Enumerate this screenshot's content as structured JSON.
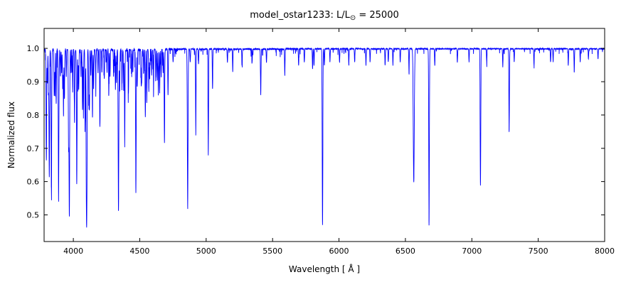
{
  "header": {
    "title_prefix": "model_ostar1233: L/L",
    "title_sub": "⊙",
    "title_suffix": " = 25000"
  },
  "chart_data": {
    "type": "line",
    "title": "model_ostar1233: L/L⊙ = 25000",
    "xlabel": "Wavelength [ Å ]",
    "ylabel": "Normalized flux",
    "xlim": [
      3780,
      8000
    ],
    "ylim": [
      0.42,
      1.06
    ],
    "xticks": [
      4000,
      4500,
      5000,
      5500,
      6000,
      6500,
      7000,
      7500,
      8000
    ],
    "yticks": [
      0.5,
      0.6,
      0.7,
      0.8,
      0.9,
      1.0
    ],
    "grid": false,
    "legend": "none",
    "line_color": "#0000ff",
    "axes_color": "#000000",
    "background_color": "#ffffff",
    "continuum_level": 1.0,
    "series_note": "Normalized stellar spectrum; absorption_lines entries are [wavelength_A, line_depth_below_continuum, sigma_A]",
    "absorption_lines": [
      [
        3797,
        0.33,
        2.2
      ],
      [
        3805,
        0.1,
        1.8
      ],
      [
        3813,
        0.12,
        1.8
      ],
      [
        3819,
        0.38,
        2.2
      ],
      [
        3835,
        0.4,
        2.4
      ],
      [
        3856,
        0.14,
        1.8
      ],
      [
        3862,
        0.12,
        1.8
      ],
      [
        3871,
        0.16,
        1.8
      ],
      [
        3889,
        0.45,
        2.4
      ],
      [
        3903,
        0.08,
        1.8
      ],
      [
        3912,
        0.07,
        1.8
      ],
      [
        3920,
        0.12,
        1.8
      ],
      [
        3926,
        0.2,
        1.8
      ],
      [
        3933,
        0.15,
        1.8
      ],
      [
        3947,
        0.08,
        1.8
      ],
      [
        3964,
        0.28,
        2.0
      ],
      [
        3970,
        0.5,
        2.4
      ],
      [
        3983,
        0.07,
        1.8
      ],
      [
        3995,
        0.13,
        1.8
      ],
      [
        4009,
        0.22,
        1.9
      ],
      [
        4026,
        0.4,
        2.2
      ],
      [
        4035,
        0.08,
        1.8
      ],
      [
        4041,
        0.12,
        1.8
      ],
      [
        4058,
        0.08,
        1.8
      ],
      [
        4069,
        0.18,
        1.8
      ],
      [
        4076,
        0.16,
        1.8
      ],
      [
        4089,
        0.22,
        1.9
      ],
      [
        4097,
        0.25,
        1.9
      ],
      [
        4101,
        0.5,
        2.6
      ],
      [
        4116,
        0.14,
        1.8
      ],
      [
        4121,
        0.18,
        1.8
      ],
      [
        4132,
        0.08,
        1.8
      ],
      [
        4144,
        0.2,
        1.9
      ],
      [
        4153,
        0.12,
        1.8
      ],
      [
        4169,
        0.09,
        1.8
      ],
      [
        4186,
        0.07,
        1.8
      ],
      [
        4200,
        0.23,
        1.9
      ],
      [
        4215,
        0.07,
        1.8
      ],
      [
        4233,
        0.09,
        1.8
      ],
      [
        4254,
        0.07,
        1.8
      ],
      [
        4267,
        0.14,
        1.8
      ],
      [
        4276,
        0.08,
        1.8
      ],
      [
        4303,
        0.08,
        1.8
      ],
      [
        4317,
        0.12,
        1.8
      ],
      [
        4325,
        0.1,
        1.8
      ],
      [
        4340,
        0.48,
        2.6
      ],
      [
        4349,
        0.12,
        1.8
      ],
      [
        4367,
        0.1,
        1.8
      ],
      [
        4379,
        0.12,
        1.8
      ],
      [
        4387,
        0.28,
        2.0
      ],
      [
        4415,
        0.13,
        1.8
      ],
      [
        4437,
        0.07,
        1.8
      ],
      [
        4448,
        0.07,
        1.8
      ],
      [
        4471,
        0.42,
        2.3
      ],
      [
        4481,
        0.11,
        1.8
      ],
      [
        4511,
        0.1,
        1.8
      ],
      [
        4515,
        0.09,
        1.8
      ],
      [
        4530,
        0.07,
        1.8
      ],
      [
        4542,
        0.2,
        2.0
      ],
      [
        4553,
        0.16,
        1.8
      ],
      [
        4568,
        0.12,
        1.8
      ],
      [
        4575,
        0.09,
        1.8
      ],
      [
        4590,
        0.08,
        1.8
      ],
      [
        4604,
        0.1,
        1.8
      ],
      [
        4621,
        0.08,
        1.8
      ],
      [
        4631,
        0.09,
        1.8
      ],
      [
        4640,
        0.12,
        1.8
      ],
      [
        4650,
        0.13,
        1.8
      ],
      [
        4661,
        0.08,
        1.8
      ],
      [
        4676,
        0.07,
        1.8
      ],
      [
        4686,
        0.28,
        2.0
      ],
      [
        4713,
        0.14,
        1.8
      ],
      [
        4751,
        0.04,
        1.8
      ],
      [
        4861,
        0.48,
        2.6
      ],
      [
        4880,
        0.04,
        1.8
      ],
      [
        4922,
        0.26,
        1.9
      ],
      [
        4943,
        0.04,
        1.8
      ],
      [
        5016,
        0.3,
        2.0
      ],
      [
        5048,
        0.12,
        1.8
      ],
      [
        5160,
        0.04,
        1.8
      ],
      [
        5200,
        0.07,
        1.8
      ],
      [
        5270,
        0.05,
        1.8
      ],
      [
        5346,
        0.04,
        1.8
      ],
      [
        5411,
        0.14,
        2.0
      ],
      [
        5454,
        0.04,
        1.8
      ],
      [
        5592,
        0.08,
        1.8
      ],
      [
        5696,
        0.05,
        1.8
      ],
      [
        5739,
        0.04,
        1.8
      ],
      [
        5801,
        0.06,
        1.8
      ],
      [
        5812,
        0.05,
        1.8
      ],
      [
        5876,
        0.53,
        2.3
      ],
      [
        5890,
        0.05,
        1.8
      ],
      [
        5932,
        0.04,
        1.8
      ],
      [
        6004,
        0.04,
        1.8
      ],
      [
        6074,
        0.05,
        1.8
      ],
      [
        6118,
        0.04,
        1.8
      ],
      [
        6203,
        0.05,
        1.8
      ],
      [
        6234,
        0.04,
        1.8
      ],
      [
        6347,
        0.05,
        1.8
      ],
      [
        6371,
        0.04,
        1.8
      ],
      [
        6406,
        0.05,
        1.8
      ],
      [
        6461,
        0.04,
        1.8
      ],
      [
        6527,
        0.07,
        1.8
      ],
      [
        6563,
        0.4,
        3.8
      ],
      [
        6678,
        0.53,
        2.3
      ],
      [
        6721,
        0.05,
        1.8
      ],
      [
        6891,
        0.04,
        1.8
      ],
      [
        6979,
        0.04,
        1.8
      ],
      [
        7065,
        0.41,
        2.3
      ],
      [
        7112,
        0.04,
        1.8
      ],
      [
        7233,
        0.05,
        1.8
      ],
      [
        7281,
        0.25,
        2.1
      ],
      [
        7319,
        0.04,
        1.8
      ],
      [
        7468,
        0.05,
        1.8
      ],
      [
        7593,
        0.04,
        1.8
      ],
      [
        7612,
        0.04,
        1.8
      ],
      [
        7726,
        0.05,
        1.8
      ],
      [
        7771,
        0.07,
        1.8
      ],
      [
        7816,
        0.04,
        1.8
      ],
      [
        7878,
        0.03,
        1.8
      ],
      [
        7950,
        0.03,
        1.8
      ]
    ],
    "continuum_noise": {
      "seed": 1233,
      "regions_note": "[start_A, end_A, base_amp, spike_prob_per_sample, spike_amp] — dense metal-line forest in the blue, cleaner continuum in the red",
      "regions": [
        [
          3780,
          4700,
          0.01,
          0.05,
          0.12
        ],
        [
          4700,
          5600,
          0.005,
          0.02,
          0.05
        ],
        [
          5600,
          8000,
          0.003,
          0.015,
          0.035
        ]
      ]
    }
  }
}
